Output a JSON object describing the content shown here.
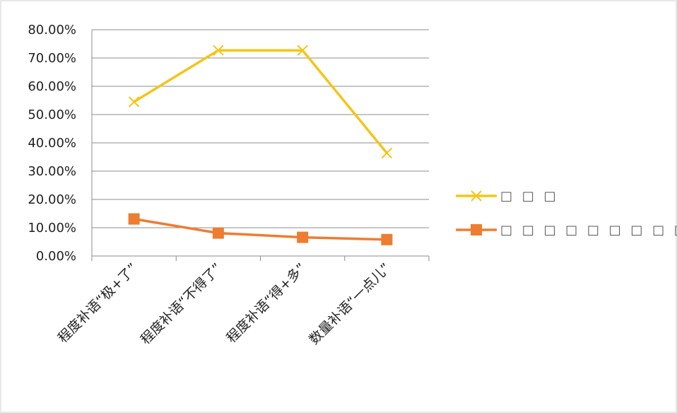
{
  "chart_data": {
    "type": "line",
    "categories": [
      "程度补语“极+了”",
      "程度补语“不得了”",
      "程度补语“得+多”",
      "数量补语“一点儿”"
    ],
    "series": [
      {
        "name": "□ □ □",
        "values": [
          54.5,
          72.7,
          72.7,
          36.4
        ],
        "color": "#f5c518",
        "marker": "x"
      },
      {
        "name": "□ □ □ □ □ □ □ □ □",
        "values": [
          13.1,
          8.1,
          6.6,
          5.8
        ],
        "color": "#ed7d31",
        "marker": "square"
      }
    ],
    "ylim": [
      0,
      80
    ],
    "yticks": [
      "0.00%",
      "10.00%",
      "20.00%",
      "30.00%",
      "40.00%",
      "50.00%",
      "60.00%",
      "70.00%",
      "80.00%"
    ],
    "title": "",
    "xlabel": "",
    "ylabel": "",
    "grid": true,
    "legend_position": "right"
  }
}
